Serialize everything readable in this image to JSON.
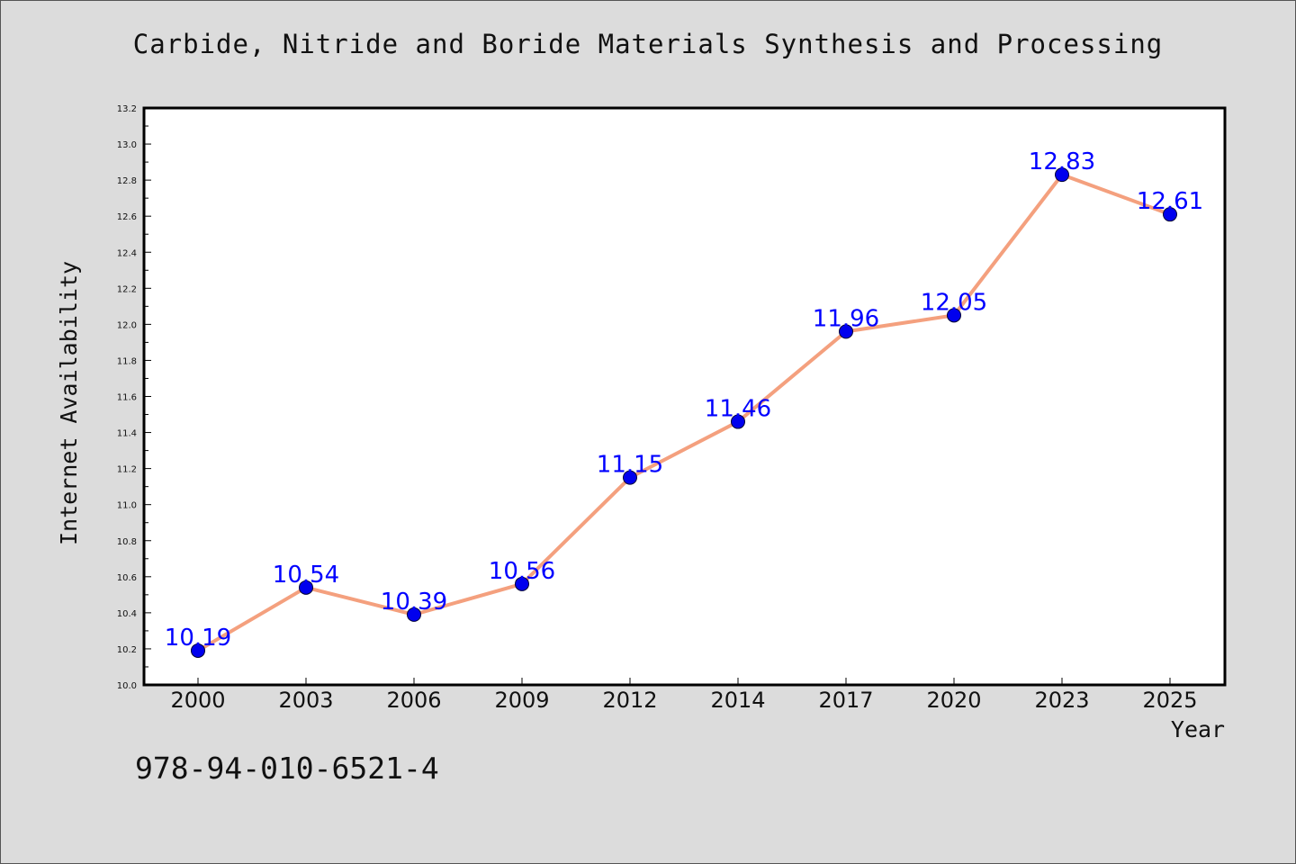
{
  "chart_data": {
    "type": "line",
    "title": "Carbide, Nitride and Boride Materials Synthesis and Processing",
    "xlabel": "Year",
    "ylabel": "Internet Availability",
    "categories": [
      "2000",
      "2003",
      "2006",
      "2009",
      "2012",
      "2014",
      "2017",
      "2020",
      "2023",
      "2025"
    ],
    "series": [
      {
        "values": [
          10.19,
          10.54,
          10.39,
          10.56,
          11.15,
          11.46,
          11.96,
          12.05,
          12.83,
          12.61
        ],
        "line_color": "#f4a07e",
        "marker_color": "#0000ee"
      }
    ],
    "data_labels": [
      "10.19",
      "10.54",
      "10.39",
      "10.56",
      "11.15",
      "11.46",
      "11.96",
      "12.05",
      "12.83",
      "12.61"
    ],
    "yticks": [
      "10.0",
      "10.2",
      "10.4",
      "10.6",
      "10.8",
      "11.0",
      "11.2",
      "11.4",
      "11.6",
      "11.8",
      "12.0",
      "12.2",
      "12.4",
      "12.6",
      "12.8",
      "13.0",
      "13.2"
    ],
    "ylim": [
      10.0,
      13.2
    ],
    "grid": false,
    "legend": "none"
  },
  "footer": {
    "isbn": "978-94-010-6521-4"
  }
}
